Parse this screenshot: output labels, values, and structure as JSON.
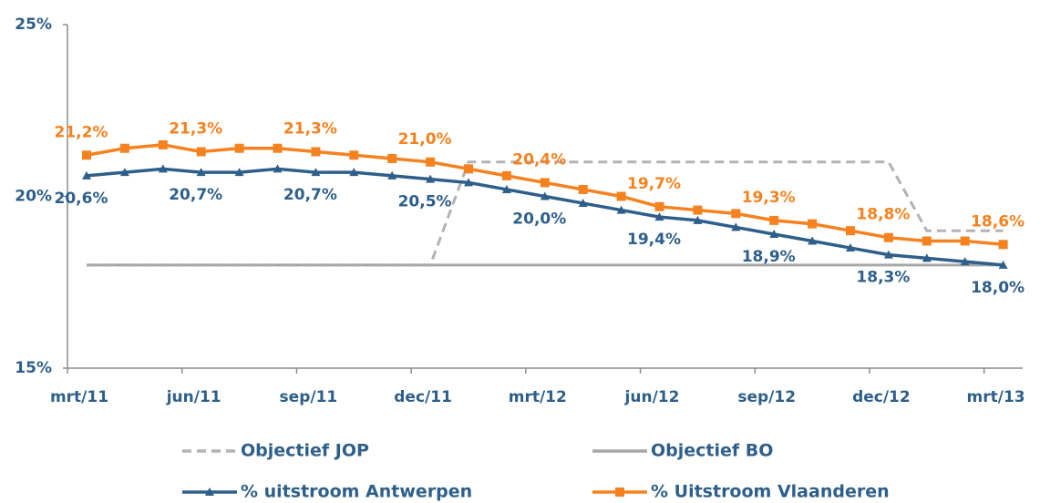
{
  "chart_data": {
    "type": "line",
    "categories": [
      "mrt/11",
      null,
      null,
      "jun/11",
      null,
      null,
      "sep/11",
      null,
      null,
      "dec/11",
      null,
      null,
      "mrt/12",
      null,
      null,
      "jun/12",
      null,
      null,
      "sep/12",
      null,
      null,
      "dec/12",
      null,
      null,
      "mrt/13"
    ],
    "series": [
      {
        "name": "Objectief JOP",
        "color": "#b3b3b3",
        "line_style": "dashed",
        "marker": "none",
        "values": [
          18,
          18,
          18,
          18,
          18,
          18,
          18,
          18,
          18,
          18,
          21,
          21,
          21,
          21,
          21,
          21,
          21,
          21,
          21,
          21,
          21,
          21,
          19,
          19,
          19
        ]
      },
      {
        "name": "Objectief BO",
        "color": "#a6a6a6",
        "line_style": "solid",
        "marker": "none",
        "values": [
          18,
          18,
          18,
          18,
          18,
          18,
          18,
          18,
          18,
          18,
          18,
          18,
          18,
          18,
          18,
          18,
          18,
          18,
          18,
          18,
          18,
          18,
          18,
          18,
          18
        ]
      },
      {
        "name": "% uitstroom Antwerpen",
        "color": "#2e5f8a",
        "line_style": "solid",
        "marker": "triangle",
        "label_side": "below",
        "values": [
          20.6,
          20.7,
          20.8,
          20.7,
          20.7,
          20.8,
          20.7,
          20.7,
          20.6,
          20.5,
          20.4,
          20.2,
          20.0,
          19.8,
          19.6,
          19.4,
          19.3,
          19.1,
          18.9,
          18.7,
          18.5,
          18.3,
          18.2,
          18.1,
          18.0
        ],
        "value_labels": [
          "20,6%",
          null,
          null,
          "20,7%",
          null,
          null,
          "20,7%",
          null,
          null,
          "20,5%",
          null,
          null,
          "20,0%",
          null,
          null,
          "19,4%",
          null,
          null,
          "18,9%",
          null,
          null,
          "18,3%",
          null,
          null,
          "18,0%"
        ]
      },
      {
        "name": "% Uitstroom Vlaanderen",
        "color": "#f58220",
        "line_style": "solid",
        "marker": "square",
        "label_side": "above",
        "values": [
          21.2,
          21.4,
          21.5,
          21.3,
          21.4,
          21.4,
          21.3,
          21.2,
          21.1,
          21.0,
          20.8,
          20.6,
          20.4,
          20.2,
          20.0,
          19.7,
          19.6,
          19.5,
          19.3,
          19.2,
          19.0,
          18.8,
          18.7,
          18.7,
          18.6
        ],
        "value_labels": [
          "21,2%",
          null,
          null,
          "21,3%",
          null,
          null,
          "21,3%",
          null,
          null,
          "21,0%",
          null,
          null,
          "20,4%",
          null,
          null,
          "19,7%",
          null,
          null,
          "19,3%",
          null,
          null,
          "18,8%",
          null,
          null,
          "18,6%"
        ]
      }
    ],
    "ylim": [
      15,
      25
    ],
    "yticks": [
      {
        "value": 15,
        "label": "15%"
      },
      {
        "value": 20,
        "label": "20%"
      },
      {
        "value": 25,
        "label": "25%"
      }
    ],
    "grid": false
  }
}
